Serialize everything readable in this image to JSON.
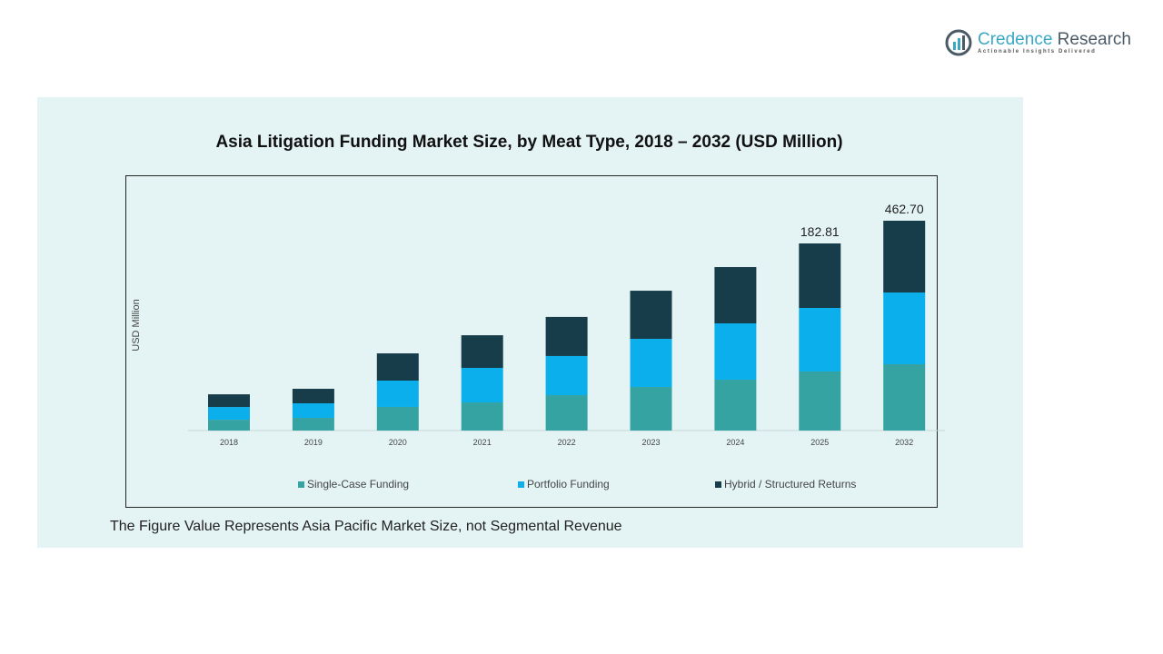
{
  "logo": {
    "name_part1": "Credence",
    "name_part2": "Research",
    "tagline": "Actionable Insights Delivered"
  },
  "note": "The Figure Value Represents Asia Pacific Market Size, not Segmental Revenue",
  "chart_data": {
    "type": "bar",
    "stacked": true,
    "title": "Asia Litigation  Funding Market Size, by Meat Type, 2018 – 2032 (USD Million)",
    "xlabel": "",
    "ylabel": "USD Million",
    "categories": [
      "2018",
      "2019",
      "2020",
      "2021",
      "2022",
      "2023",
      "2024",
      "2025",
      "2032"
    ],
    "series": [
      {
        "name": "Single-Case Funding",
        "color": "#36a3a3",
        "values": [
          10.6,
          12.4,
          23.1,
          27.5,
          34.6,
          42.6,
          49.7,
          57.7,
          146.2
        ]
      },
      {
        "name": "Portfolio Funding",
        "color": "#0aafec",
        "values": [
          12.4,
          14.2,
          25.7,
          33.7,
          38.2,
          47.0,
          55.0,
          62.1,
          158.2
        ]
      },
      {
        "name": "Hybrid / Structured Returns",
        "color": "#173c4a",
        "values": [
          12.4,
          14.2,
          26.6,
          31.9,
          38.2,
          47.0,
          55.0,
          63.0,
          158.3
        ]
      }
    ],
    "data_labels": {
      "2025": "182.81",
      "2032": "462.70"
    },
    "grid": false,
    "legend_position": "bottom"
  }
}
